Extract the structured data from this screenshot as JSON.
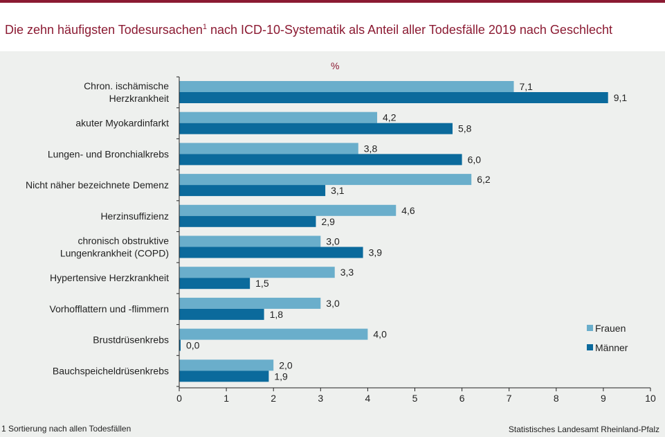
{
  "header": {
    "title": "Die zehn häufigsten Todesursachen",
    "title_sup": "1",
    "title_rest": " nach ICD-10-Systematik als Anteil aller Todesfälle 2019 nach Geschlecht"
  },
  "footnote": "1 Sortierung nach allen Todesfällen",
  "source": "Statistisches Landesamt Rheinland-Pfalz",
  "colors": {
    "frauen": "#6aaecb",
    "maenner": "#0b6a9c",
    "accent": "#8b1a32"
  },
  "chart_data": {
    "type": "bar",
    "orientation": "horizontal",
    "unit_label": "%",
    "categories": [
      [
        "Chron. ischämische",
        "Herzkrankheit"
      ],
      [
        "akuter Myokardinfarkt"
      ],
      [
        "Lungen- und Bronchialkrebs"
      ],
      [
        "Nicht näher bezeichnete Demenz"
      ],
      [
        "Herzinsuffizienz"
      ],
      [
        "chronisch obstruktive",
        "Lungenkrankheit (COPD)"
      ],
      [
        "Hypertensive Herzkrankheit"
      ],
      [
        "Vorhofflattern und -flimmern"
      ],
      [
        "Brustdrüsenkrebs"
      ],
      [
        "Bauchspeicheldrüsenkrebs"
      ]
    ],
    "series": [
      {
        "name": "Frauen",
        "values": [
          7.1,
          4.2,
          3.8,
          6.2,
          4.6,
          3.0,
          3.3,
          3.0,
          4.0,
          2.0
        ],
        "labels": [
          "7,1",
          "4,2",
          "3,8",
          "6,2",
          "4,6",
          "3,0",
          "3,3",
          "3,0",
          "4,0",
          "2,0"
        ]
      },
      {
        "name": "Männer",
        "values": [
          9.1,
          5.8,
          6.0,
          3.1,
          2.9,
          3.9,
          1.5,
          1.8,
          0.0,
          1.9
        ],
        "labels": [
          "9,1",
          "5,8",
          "6,0",
          "3,1",
          "2,9",
          "3,9",
          "1,5",
          "1,8",
          "0,0",
          "1,9"
        ]
      }
    ],
    "xlim": [
      0,
      10
    ],
    "xticks": [
      0,
      1,
      2,
      3,
      4,
      5,
      6,
      7,
      8,
      9,
      10
    ],
    "grid": false,
    "legend_position": "bottom-right"
  }
}
